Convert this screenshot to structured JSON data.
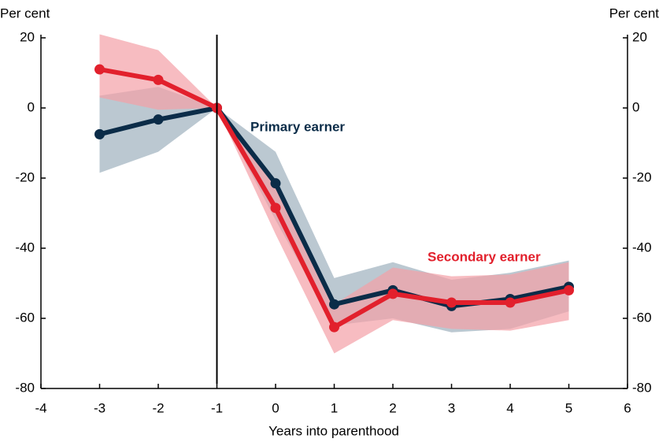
{
  "chart_data": {
    "type": "line",
    "x_label": "Years into parenthood",
    "y_label": "Per cent",
    "y2_label": "Per cent",
    "x": [
      -3,
      -2,
      -1,
      0,
      1,
      2,
      3,
      4,
      5
    ],
    "xlim": [
      -4,
      6
    ],
    "xticks": [
      -4,
      -3,
      -2,
      -1,
      0,
      1,
      2,
      3,
      4,
      5,
      6
    ],
    "ylim": [
      -80,
      20
    ],
    "yticks": [
      -80,
      -60,
      -40,
      -20,
      0,
      20
    ],
    "y2lim": [
      -80,
      20
    ],
    "y2ticks": [
      -80,
      -60,
      -40,
      -20,
      0,
      20
    ],
    "vline": -1,
    "series": [
      {
        "name": "Primary earner",
        "color": "#0b2c48",
        "band_color": "#9eb0be",
        "values": [
          -7.5,
          -3.3,
          0,
          -21.5,
          -56,
          -52,
          -56.5,
          -54.5,
          -51
        ],
        "lower": [
          -18.5,
          -12.5,
          0,
          -32,
          -62,
          -60,
          -64,
          -63,
          -58
        ],
        "upper": [
          3.5,
          6,
          0,
          -12.5,
          -48.5,
          -44,
          -49,
          -47,
          -43.5
        ]
      },
      {
        "name": "Secondary earner",
        "color": "#e2202c",
        "band_color": "#f4a0a6",
        "values": [
          11,
          8,
          0,
          -28.5,
          -62.5,
          -53,
          -55.5,
          -55.5,
          -52
        ],
        "lower": [
          3,
          -0.5,
          0,
          -36,
          -70,
          -60.5,
          -63,
          -63.5,
          -60.5
        ],
        "upper": [
          21,
          16.5,
          0,
          -21,
          -56,
          -45.5,
          -48,
          -47.5,
          -44
        ]
      }
    ]
  }
}
